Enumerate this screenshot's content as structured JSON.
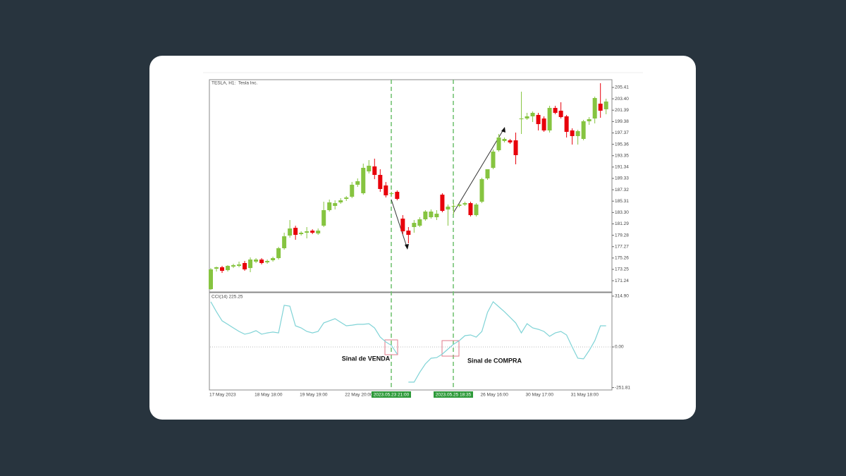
{
  "chart_data": [
    {
      "type": "candlestick",
      "title": "TESLA, H1:  Tesla Inc.",
      "categories": [
        "17 May 2023",
        null,
        null,
        null,
        null,
        null,
        null,
        null,
        "18 May 18:00",
        null,
        null,
        null,
        null,
        null,
        null,
        null,
        "19 May 19:00",
        null,
        null,
        null,
        null,
        null,
        null,
        null,
        "22 May 20:00",
        null,
        null,
        null,
        null,
        null,
        null,
        null,
        null,
        null,
        null,
        null,
        null,
        null,
        null,
        null,
        null,
        null,
        null,
        null,
        null,
        null,
        null,
        null,
        "26 May 16:00",
        null,
        null,
        null,
        null,
        null,
        null,
        null,
        "30 May 17:00",
        null,
        null,
        null,
        null,
        null,
        null,
        null,
        "31 May 18:00",
        null,
        null,
        null,
        null,
        null,
        null
      ],
      "open": [
        169.75,
        173.37,
        173.62,
        173.12,
        173.74,
        173.87,
        174.37,
        173.49,
        174.62,
        174.99,
        174.49,
        174.87,
        175.24,
        176.99,
        179.23,
        180.6,
        179.48,
        179.73,
        180.1,
        179.6,
        180.97,
        183.72,
        184.47,
        185.09,
        185.71,
        186.09,
        188.21,
        186.71,
        190.57,
        191.45,
        189.95,
        188.08,
        186.58,
        186.96,
        182.22,
        180.1,
        180.73,
        180.97,
        182.1,
        182.47,
        182.47,
        186.46,
        183.84,
        184.34,
        184.47,
        184.71,
        184.96,
        182.84,
        185.21,
        189.33,
        191.2,
        194.31,
        195.94,
        196.06,
        196.06,
        199.92,
        199.92,
        200.3,
        200.55,
        199.92,
        197.81,
        201.79,
        201.3,
        200.3,
        197.81,
        196.81,
        196.31,
        199.43,
        199.92,
        202.54,
        201.55
      ],
      "high": [
        173.49,
        173.74,
        173.87,
        173.99,
        174.24,
        174.62,
        174.74,
        175.36,
        175.24,
        175.24,
        174.99,
        175.49,
        177.23,
        179.73,
        181.97,
        180.97,
        179.98,
        180.73,
        180.35,
        180.48,
        185.21,
        185.59,
        185.46,
        185.84,
        186.21,
        188.7,
        189.33,
        191.95,
        192.57,
        192.82,
        190.95,
        188.7,
        186.96,
        187.21,
        182.84,
        180.73,
        181.97,
        182.47,
        183.72,
        183.84,
        183.72,
        186.71,
        184.71,
        184.96,
        184.84,
        185.21,
        185.21,
        184.96,
        189.45,
        190.95,
        194.44,
        197.18,
        196.56,
        196.31,
        197.43,
        204.66,
        200.92,
        201.17,
        200.92,
        200.3,
        202.17,
        202.17,
        202.79,
        200.55,
        198.18,
        197.93,
        199.68,
        200.17,
        203.79,
        206.16,
        203.42
      ],
      "low": [
        169.63,
        172.87,
        172.62,
        172.87,
        173.49,
        173.62,
        173.0,
        172.75,
        174.37,
        174.12,
        174.24,
        174.62,
        174.99,
        176.74,
        178.86,
        178.48,
        179.23,
        178.73,
        179.48,
        179.35,
        180.73,
        183.47,
        183.84,
        184.84,
        185.34,
        185.84,
        187.83,
        186.46,
        190.2,
        189.2,
        186.96,
        185.96,
        186.34,
        185.46,
        179.48,
        177.86,
        179.73,
        180.73,
        181.85,
        182.22,
        181.97,
        183.34,
        180.97,
        182.97,
        184.22,
        184.47,
        182.6,
        182.6,
        184.96,
        189.08,
        190.95,
        194.07,
        195.69,
        195.44,
        191.82,
        197.18,
        199.68,
        199.3,
        197.81,
        197.56,
        197.43,
        200.67,
        199.92,
        196.56,
        195.31,
        195.31,
        196.06,
        198.8,
        199.05,
        200.05,
        200.67
      ],
      "close": [
        173.25,
        173.62,
        173.0,
        173.87,
        173.99,
        174.12,
        173.25,
        174.99,
        174.99,
        174.37,
        174.74,
        175.24,
        176.99,
        179.1,
        180.48,
        179.35,
        179.73,
        179.98,
        179.73,
        180.1,
        183.72,
        185.09,
        184.96,
        185.46,
        185.96,
        188.21,
        188.83,
        191.2,
        191.57,
        189.95,
        187.46,
        186.34,
        186.71,
        185.71,
        179.98,
        179.35,
        181.47,
        182.1,
        183.47,
        183.47,
        183.09,
        183.59,
        184.34,
        184.47,
        184.71,
        184.96,
        182.84,
        184.71,
        189.2,
        190.95,
        194.07,
        196.56,
        196.31,
        195.69,
        193.44,
        199.92,
        200.3,
        200.92,
        198.93,
        197.81,
        201.79,
        200.92,
        200.17,
        197.56,
        196.81,
        197.68,
        199.43,
        199.8,
        203.54,
        201.3,
        202.92
      ],
      "up_color": "#86c440",
      "down_color": "#e8000b",
      "ylim": [
        169.26,
        206.78
      ],
      "yticks": [
        205.41,
        {
          "value": 203.4,
          "label": "203.40"
        },
        201.39,
        199.38,
        197.37,
        195.36,
        193.35,
        191.34,
        189.33,
        187.32,
        185.31,
        {
          "value": 183.3,
          "label": "183.30"
        },
        181.29,
        179.28,
        177.27,
        175.26,
        173.25,
        171.24
      ],
      "markers": [
        "2023.05.23 21:00",
        "2023.05.25 18:35"
      ]
    },
    {
      "type": "line",
      "title": "CCI(14) 225.25",
      "color": "#7fd3d6",
      "values": [
        280,
        218,
        162,
        140,
        118,
        96,
        79,
        87,
        101,
        79,
        87,
        92,
        87,
        258,
        253,
        131,
        118,
        96,
        87,
        96,
        149,
        162,
        175,
        153,
        131,
        135,
        140,
        140,
        144,
        118,
        61,
        31,
        9,
        -44,
        null,
        -218,
        -218,
        -157,
        -105,
        -70,
        -66,
        -44,
        -13,
        17,
        39,
        70,
        74,
        61,
        96,
        214,
        280,
        249,
        218,
        184,
        149,
        87,
        144,
        118,
        109,
        96,
        66,
        87,
        96,
        74,
        0,
        -70,
        -74,
        -22,
        39,
        131,
        131
      ],
      "ylim": [
        -266.6,
        332
      ],
      "yticks": [
        {
          "value": 314.9,
          "label": "314.90"
        },
        {
          "value": 0,
          "label": "0.00"
        },
        -251.81
      ],
      "annotations": [
        "Sinal de VENDA",
        "Sinal de COMPRA"
      ]
    }
  ]
}
